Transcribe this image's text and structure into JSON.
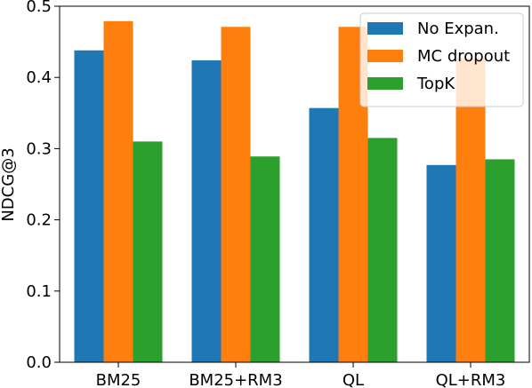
{
  "chart_data": {
    "type": "bar",
    "categories": [
      "BM25",
      "BM25+RM3",
      "QL",
      "QL+RM3"
    ],
    "series": [
      {
        "name": "No Expan.",
        "values": [
          0.438,
          0.424,
          0.357,
          0.277
        ]
      },
      {
        "name": "MC dropout",
        "values": [
          0.479,
          0.471,
          0.471,
          0.427
        ]
      },
      {
        "name": "TopK",
        "values": [
          0.31,
          0.289,
          0.315,
          0.285
        ]
      }
    ],
    "xlabel": "",
    "ylabel": "NDCG@3",
    "ylim": [
      0.0,
      0.5
    ],
    "yticks": [
      "0.0",
      "0.1",
      "0.2",
      "0.3",
      "0.4",
      "0.5"
    ],
    "legend": "top-right",
    "grid": false,
    "colors": [
      "#1f77b4",
      "#ff7f0e",
      "#2ca02c"
    ]
  }
}
